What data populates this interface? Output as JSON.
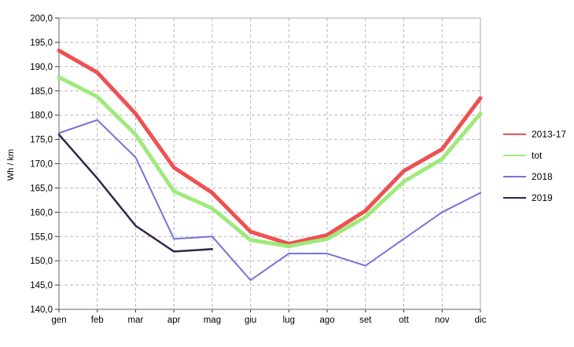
{
  "chart_data": {
    "type": "line",
    "title": "",
    "xlabel": "",
    "ylabel": "Wh / km",
    "grid": true,
    "legend_position": "right",
    "ylim": [
      140,
      200
    ],
    "ytick_step": 5,
    "ytick_labels": [
      "200,0",
      "195,0",
      "190,0",
      "185,0",
      "180,0",
      "175,0",
      "170,0",
      "165,0",
      "160,0",
      "155,0",
      "150,0",
      "145,0",
      "140,0"
    ],
    "categories": [
      "gen",
      "feb",
      "mar",
      "apr",
      "mag",
      "giu",
      "lug",
      "ago",
      "set",
      "ott",
      "nov",
      "dic"
    ],
    "series": [
      {
        "name": "2013-17",
        "color": "#ee5151",
        "line_width": 5,
        "values": [
          193.3,
          188.8,
          180.3,
          169.2,
          164.0,
          156.0,
          153.5,
          155.3,
          160.3,
          168.5,
          173.0,
          183.5
        ]
      },
      {
        "name": "tot",
        "color": "#9fe97d",
        "line_width": 5,
        "values": [
          187.8,
          183.8,
          176.0,
          164.3,
          160.8,
          154.3,
          153.0,
          154.5,
          159.0,
          166.3,
          171.0,
          180.3
        ]
      },
      {
        "name": "2018",
        "color": "#7373d9",
        "line_width": 2,
        "values": [
          176.3,
          179.0,
          171.3,
          154.5,
          155.0,
          146.0,
          151.5,
          151.5,
          149.0,
          154.5,
          160.0,
          164.0
        ]
      },
      {
        "name": "2019",
        "color": "#33234a",
        "line_width": 2.5,
        "values": [
          176.0,
          167.0,
          157.2,
          151.9,
          152.4,
          null,
          null,
          null,
          null,
          null,
          null,
          null
        ]
      }
    ],
    "colors": {
      "grid": "#b8b8b8",
      "border": "#a8a8a8",
      "axis": "#666666",
      "tick": "#333333",
      "label_text": "#000000",
      "background": "#ffffff"
    }
  }
}
